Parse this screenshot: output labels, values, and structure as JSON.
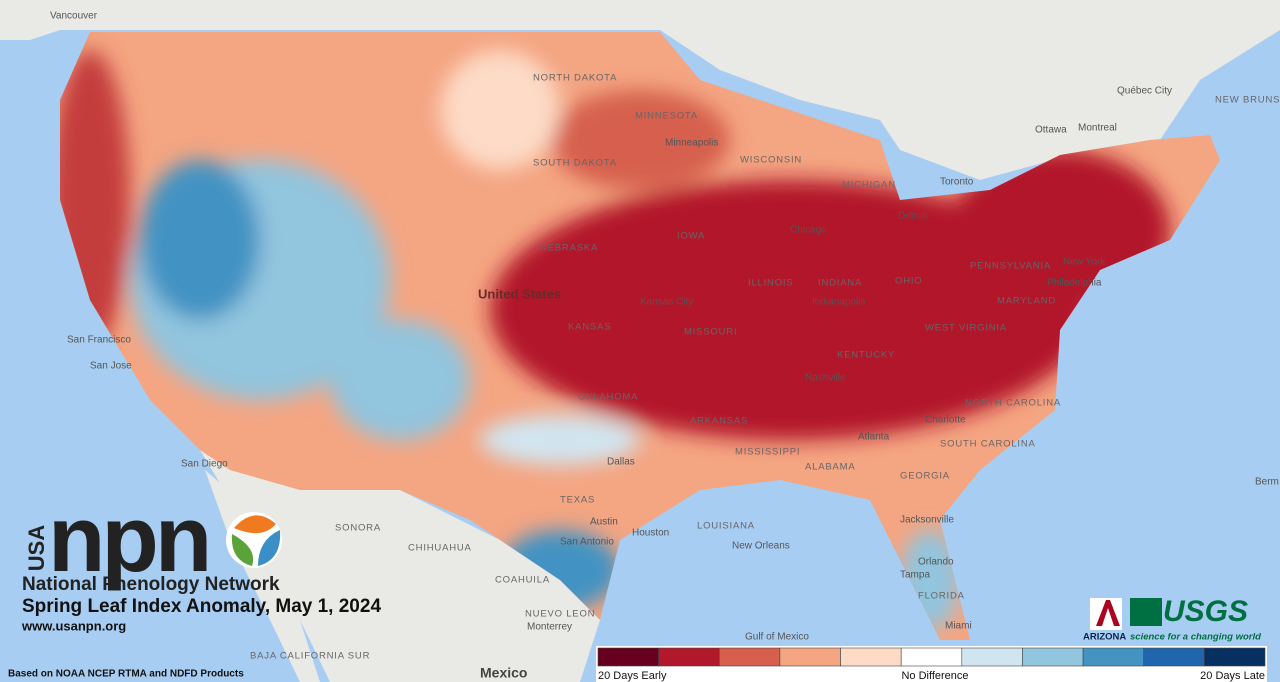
{
  "logo": {
    "country": "USA",
    "acronym": "npn",
    "name": "National Phenology Network"
  },
  "title": "Spring Leaf Index Anomaly, May 1, 2024",
  "url": "www.usanpn.org",
  "source": "Based on NOAA NCEP RTMA and NDFD Products",
  "partners": {
    "arizona": "ARIZONA",
    "usgs": "USGS",
    "usgs_tagline": "science for a changing world"
  },
  "legend": {
    "colors": [
      "#67001f",
      "#b2182b",
      "#d6604d",
      "#f4a582",
      "#fddbc7",
      "#ffffff",
      "#d1e5f0",
      "#92c5de",
      "#4393c3",
      "#2166ac",
      "#053061"
    ],
    "left": "20 Days Early",
    "center": "No Difference",
    "right": "20 Days Late"
  },
  "map_labels": [
    "Vancouver",
    "Québec City",
    "NEW BRUNSWICK",
    "Ottawa",
    "Montreal",
    "Toronto",
    "Detroit",
    "Chicago",
    "MINNESOTA",
    "Minneapolis",
    "WISCONSIN",
    "MICHIGAN",
    "NORTH DAKOTA",
    "SOUTH DAKOTA",
    "NEBRASKA",
    "IOWA",
    "United States",
    "Kansas City",
    "KANSAS",
    "MISSOURI",
    "ILLINOIS",
    "INDIANA",
    "Indianapolis",
    "OHIO",
    "PENNSYLVANIA",
    "New York",
    "Philadelphia",
    "MARYLAND",
    "WEST VIRGINIA",
    "KENTUCKY",
    "Nashville",
    "NORTH CAROLINA",
    "SOUTH CAROLINA",
    "Charlotte",
    "Atlanta",
    "GEORGIA",
    "ALABAMA",
    "MISSISSIPPI",
    "OKLAHOMA",
    "ARKANSAS",
    "Dallas",
    "TEXAS",
    "Austin",
    "San Antonio",
    "Houston",
    "LOUISIANA",
    "New Orleans",
    "Jacksonville",
    "Orlando",
    "Tampa",
    "FLORIDA",
    "Miami",
    "San Francisco",
    "San Jose",
    "San Diego",
    "SONORA",
    "CHIHUAHUA",
    "COAHUILA",
    "NUEVO LEON",
    "Monterrey",
    "BAJA CALIFORNIA SUR",
    "Mexico",
    "Gulf of Mexico",
    "Berm"
  ]
}
